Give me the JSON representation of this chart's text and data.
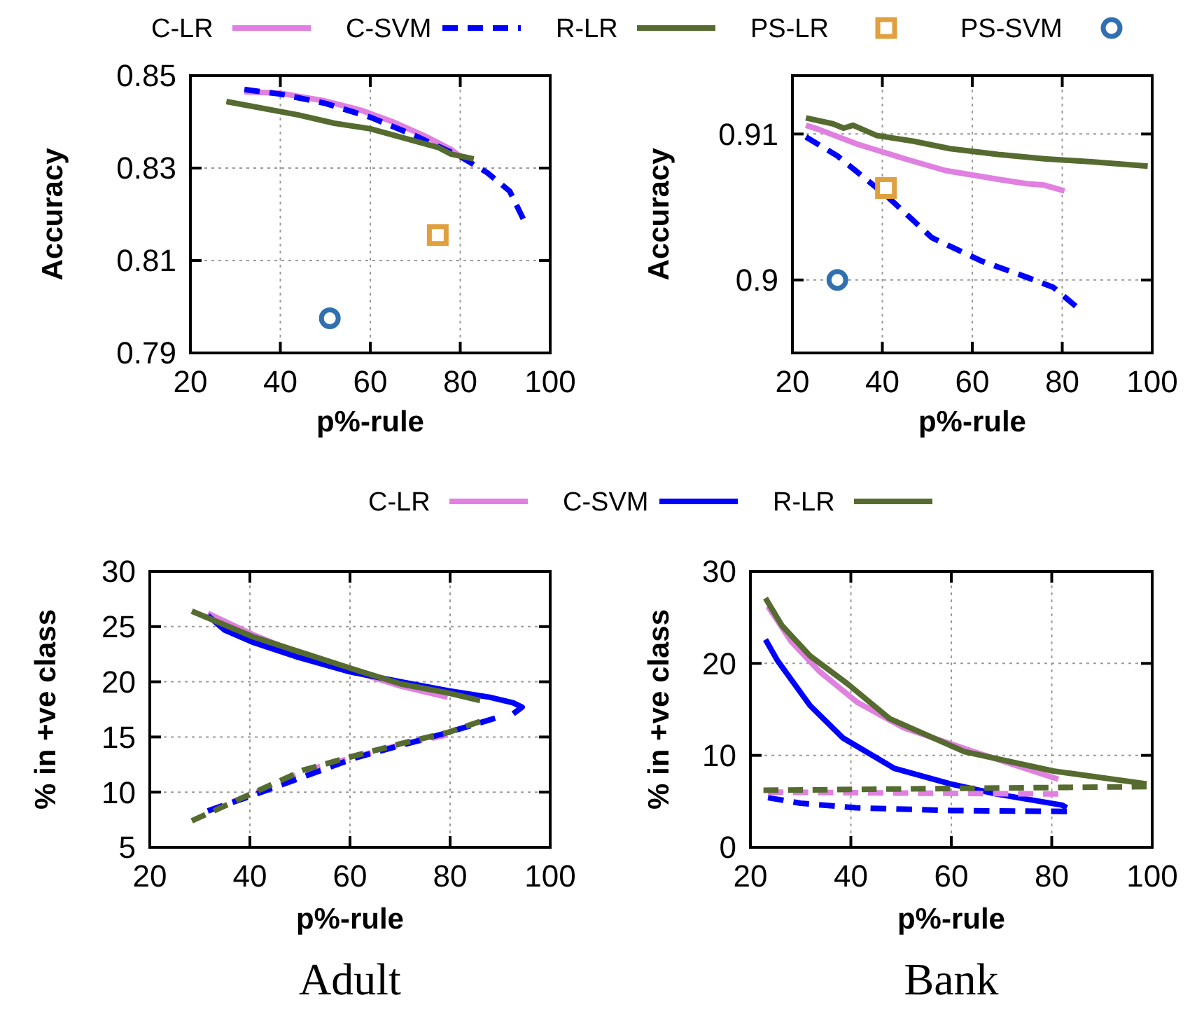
{
  "chart_data": [
    {
      "type": "line",
      "xlabel": "p%-rule",
      "ylabel": "Accuracy",
      "xlim": [
        20,
        100
      ],
      "xticks": [
        20,
        40,
        60,
        80,
        100
      ],
      "ylim": [
        0.79,
        0.85
      ],
      "yticks": [
        0.79,
        0.81,
        0.83,
        0.85
      ],
      "grid": true,
      "legend": "top",
      "series": [
        {
          "name": "C-LR",
          "color": "#e080e0",
          "line_style": "solid",
          "x": [
            32,
            40,
            50,
            58,
            65,
            72,
            78,
            80
          ],
          "values": [
            0.8465,
            0.8462,
            0.8445,
            0.8425,
            0.84,
            0.837,
            0.834,
            0.8325
          ]
        },
        {
          "name": "C-SVM",
          "color": "#0000ff",
          "line_style": "dashed",
          "x": [
            32,
            40,
            50,
            60,
            70,
            80,
            86,
            91,
            94
          ],
          "values": [
            0.847,
            0.846,
            0.844,
            0.841,
            0.837,
            0.8325,
            0.829,
            0.825,
            0.819
          ]
        },
        {
          "name": "R-LR",
          "color": "#556b2f",
          "line_style": "solid",
          "x": [
            28,
            44,
            52,
            60,
            75,
            78,
            83
          ],
          "values": [
            0.8444,
            0.8415,
            0.8397,
            0.8385,
            0.8345,
            0.833,
            0.832
          ]
        },
        {
          "name": "PS-LR",
          "type": "scatter",
          "marker": "square",
          "color": "#e0a040",
          "x": [
            75
          ],
          "values": [
            0.8155
          ]
        },
        {
          "name": "PS-SVM",
          "type": "scatter",
          "marker": "circle",
          "color": "#3070b0",
          "x": [
            51
          ],
          "values": [
            0.7975
          ]
        }
      ]
    },
    {
      "type": "line",
      "xlabel": "p%-rule",
      "ylabel": "Accuracy",
      "xlim": [
        20,
        100
      ],
      "xticks": [
        20,
        40,
        60,
        80,
        100
      ],
      "ylim": [
        0.895,
        0.914
      ],
      "yticks": [
        0.9,
        0.91
      ],
      "grid": true,
      "series": [
        {
          "color": "#e080e0",
          "line_style": "solid",
          "x": [
            23,
            26,
            34.5,
            45,
            54,
            65.7,
            72,
            76,
            80.5
          ],
          "values": [
            0.9106,
            0.9103,
            0.9093,
            0.9083,
            0.9075,
            0.9069,
            0.9066,
            0.9065,
            0.9061
          ]
        },
        {
          "color": "#0000ff",
          "line_style": "dashed",
          "x": [
            23,
            30,
            40.8,
            51,
            62,
            72,
            78,
            83
          ],
          "values": [
            0.9098,
            0.9085,
            0.9058,
            0.9029,
            0.9013,
            0.9002,
            0.8995,
            0.8982
          ]
        },
        {
          "color": "#556b2f",
          "line_style": "solid",
          "x": [
            23,
            29,
            31.4,
            33.5,
            38.7,
            47,
            55,
            65.7,
            76,
            86.5,
            99
          ],
          "values": [
            0.9111,
            0.9107,
            0.9104,
            0.9106,
            0.9099,
            0.9095,
            0.909,
            0.9086,
            0.9083,
            0.9081,
            0.9078
          ]
        },
        {
          "type": "scatter",
          "marker": "square",
          "color": "#e0a040",
          "x": [
            40.8
          ],
          "values": [
            0.9063
          ]
        },
        {
          "type": "scatter",
          "marker": "circle",
          "color": "#3070b0",
          "x": [
            30
          ],
          "values": [
            0.9
          ]
        }
      ]
    },
    {
      "type": "line",
      "title": "Adult",
      "xlabel": "p%-rule",
      "ylabel": "% in +ve class",
      "xlim": [
        20,
        100
      ],
      "xticks": [
        20,
        40,
        60,
        80,
        100
      ],
      "ylim": [
        5,
        30
      ],
      "yticks": [
        5,
        10,
        15,
        20,
        25,
        30
      ],
      "grid": true,
      "legend": "top",
      "series": [
        {
          "name": "C-LR",
          "color": "#e080e0",
          "line_style": "solid",
          "x": [
            31.6,
            40.5,
            50.7,
            61,
            70.2,
            79.5
          ],
          "values": [
            26.2,
            24.3,
            22.4,
            20.9,
            19.6,
            18.6
          ]
        },
        {
          "name": "C-SVM",
          "color": "#0000ff",
          "line_style": "solid",
          "x": [
            31.6,
            34.9,
            40.5,
            49.8,
            60,
            70.2,
            79.5,
            87.9,
            92.6,
            94.4,
            92.6
          ],
          "values": [
            26,
            24.7,
            23.6,
            22.2,
            20.9,
            20,
            19.2,
            18.6,
            18.1,
            17.7,
            17.1
          ]
        },
        {
          "name": "R-LR",
          "color": "#556b2f",
          "line_style": "solid",
          "x": [
            28.4,
            40.5,
            50.7,
            61,
            70.2,
            79.5,
            86
          ],
          "values": [
            26.4,
            24.1,
            22.6,
            21.1,
            19.8,
            19,
            18.3
          ]
        },
        {
          "color": "#e080e0",
          "line_style": "dashed",
          "x": [
            31.6,
            40.5,
            50.7,
            61,
            70.2,
            79.5
          ],
          "values": [
            8.3,
            9.8,
            11.9,
            13.2,
            14.3,
            15.2
          ]
        },
        {
          "color": "#0000ff",
          "line_style": "dashed",
          "x": [
            31.6,
            40.5,
            61,
            79.5,
            89
          ],
          "values": [
            8.3,
            9.7,
            13.1,
            15.4,
            16.7
          ]
        },
        {
          "color": "#556b2f",
          "line_style": "dashed",
          "x": [
            28.4,
            40.5,
            50.7,
            61,
            70.2,
            79.5,
            86
          ],
          "values": [
            7.4,
            9.9,
            12,
            13.3,
            14.4,
            15.4,
            16.4
          ]
        }
      ]
    },
    {
      "type": "line",
      "title": "Bank",
      "xlabel": "p%-rule",
      "ylabel": "% in +ve class",
      "xlim": [
        20,
        100
      ],
      "xticks": [
        20,
        40,
        60,
        80,
        100
      ],
      "ylim": [
        0,
        30
      ],
      "yticks": [
        0,
        10,
        20,
        30
      ],
      "grid": true,
      "series": [
        {
          "color": "#e080e0",
          "line_style": "solid",
          "x": [
            23.5,
            28.1,
            33.8,
            41.2,
            50.5,
            64.5,
            81.3
          ],
          "values": [
            26.2,
            22.4,
            19.1,
            15.8,
            13,
            10.4,
            7.4
          ]
        },
        {
          "color": "#0000ff",
          "line_style": "solid",
          "x": [
            23,
            25.4,
            31.9,
            38.4,
            48.6,
            59.8,
            69,
            82,
            83
          ],
          "values": [
            22.6,
            20.3,
            15.4,
            11.9,
            8.6,
            6.9,
            5.8,
            4.6,
            4.3
          ]
        },
        {
          "color": "#556b2f",
          "line_style": "solid",
          "x": [
            23,
            26.3,
            31.9,
            39.3,
            47.7,
            62.6,
            80.3,
            98.9
          ],
          "values": [
            27.1,
            24.1,
            20.8,
            17.8,
            14,
            10.4,
            8.3,
            6.9
          ]
        },
        {
          "color": "#e080e0",
          "line_style": "dashed",
          "x": [
            23.5,
            50,
            81.3
          ],
          "values": [
            6,
            5.9,
            5.8
          ]
        },
        {
          "color": "#0000ff",
          "line_style": "dashed",
          "x": [
            23.5,
            30,
            41,
            60,
            83
          ],
          "values": [
            5.4,
            4.8,
            4.3,
            4,
            3.9
          ]
        },
        {
          "color": "#556b2f",
          "line_style": "dashed",
          "x": [
            22.6,
            60,
            98.9
          ],
          "values": [
            6.2,
            6.4,
            6.6
          ]
        }
      ]
    }
  ]
}
